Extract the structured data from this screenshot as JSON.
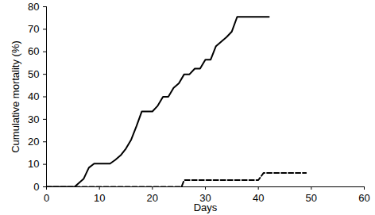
{
  "chart_data": {
    "type": "line",
    "x_label": "Days",
    "y_label": "Cumulative mortality (%)",
    "xlim": [
      0,
      60
    ],
    "xticks": [
      0,
      10,
      20,
      30,
      40,
      50,
      60
    ],
    "ylim": [
      0,
      80
    ],
    "yticks": [
      0,
      10,
      20,
      30,
      40,
      50,
      60,
      70,
      80
    ],
    "grid": false,
    "series": [
      {
        "color": "#000000",
        "line_style": "solid",
        "x": [
          0,
          5.3,
          7,
          8,
          9,
          11,
          12,
          13,
          14,
          15,
          16,
          17,
          18,
          19,
          20,
          21,
          22,
          23,
          24,
          25,
          26,
          27,
          28,
          29,
          30,
          31,
          32,
          33,
          34,
          35,
          36,
          42
        ],
        "values": [
          0,
          0,
          3.5,
          8.5,
          10.3,
          10.3,
          10.3,
          12,
          14,
          17,
          21,
          27,
          33.5,
          33.5,
          33.5,
          36,
          40,
          40,
          44,
          46,
          50,
          50,
          52.5,
          52.5,
          56.5,
          56.5,
          62.5,
          64.5,
          66.5,
          69,
          75.5,
          75.5
        ]
      },
      {
        "color": "#000000",
        "line_style": "dashed",
        "x": [
          0,
          25.5,
          26,
          40,
          41,
          49
        ],
        "values": [
          0,
          0,
          3,
          3,
          6.2,
          6.2
        ]
      }
    ]
  }
}
